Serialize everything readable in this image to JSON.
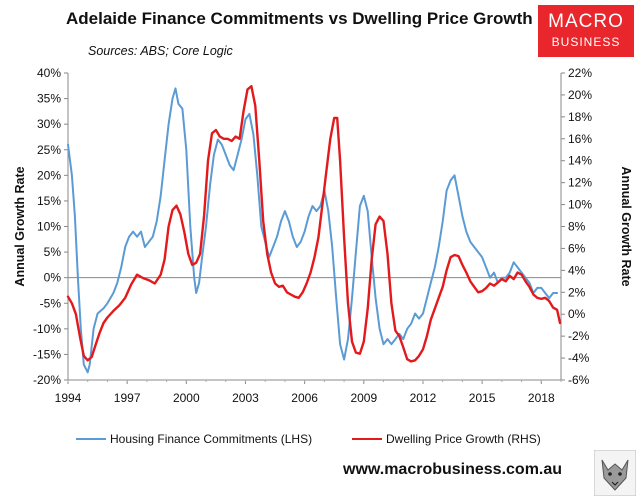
{
  "title": "Adelaide Finance Commitments vs Dwelling Price Growth",
  "subtitle": "Sources: ABS; Core Logic",
  "logo": {
    "line1": "MACRO",
    "line2": "BUSINESS"
  },
  "website": "www.macrobusiness.com.au",
  "colors": {
    "lhs": "#5b9bd5",
    "rhs": "#e31a1c",
    "logo_bg": "#e8262b"
  },
  "chart_data": {
    "type": "line",
    "title": "Adelaide Finance Commitments vs Dwelling Price Growth",
    "xlabel": "",
    "ylabel_left": "Annual Growth Rate",
    "ylabel_right": "Annual Growth Rate",
    "xlim": [
      1994,
      2019
    ],
    "ylim_left": [
      -20,
      40
    ],
    "ylim_right": [
      -6,
      22
    ],
    "x_ticks": [
      "1994",
      "1997",
      "2000",
      "2003",
      "2006",
      "2009",
      "2012",
      "2015",
      "2018"
    ],
    "y_ticks_left": [
      "40%",
      "35%",
      "30%",
      "25%",
      "20%",
      "15%",
      "10%",
      "5%",
      "0%",
      "-5%",
      "-10%",
      "-15%",
      "-20%"
    ],
    "y_ticks_right": [
      "22%",
      "20%",
      "18%",
      "16%",
      "14%",
      "12%",
      "10%",
      "8%",
      "6%",
      "4%",
      "2%",
      "0%",
      "-2%",
      "-4%",
      "-6%"
    ],
    "grid": false,
    "legend_position": "bottom",
    "series": [
      {
        "name": "Housing Finance Commitments (LHS)",
        "axis": "left",
        "color": "#5b9bd5",
        "points": [
          [
            1994.0,
            26
          ],
          [
            1994.2,
            20
          ],
          [
            1994.35,
            12
          ],
          [
            1994.5,
            0
          ],
          [
            1994.65,
            -10
          ],
          [
            1994.8,
            -17
          ],
          [
            1995.0,
            -18.5
          ],
          [
            1995.1,
            -17
          ],
          [
            1995.3,
            -10
          ],
          [
            1995.5,
            -7
          ],
          [
            1995.8,
            -6
          ],
          [
            1996.0,
            -5
          ],
          [
            1996.3,
            -3
          ],
          [
            1996.5,
            -1
          ],
          [
            1996.7,
            2
          ],
          [
            1996.9,
            6
          ],
          [
            1997.1,
            8
          ],
          [
            1997.3,
            9
          ],
          [
            1997.5,
            8
          ],
          [
            1997.7,
            9
          ],
          [
            1997.9,
            6
          ],
          [
            1998.1,
            7
          ],
          [
            1998.3,
            8
          ],
          [
            1998.5,
            11
          ],
          [
            1998.7,
            16
          ],
          [
            1998.9,
            23
          ],
          [
            1999.1,
            30
          ],
          [
            1999.3,
            35
          ],
          [
            1999.45,
            37
          ],
          [
            1999.6,
            34
          ],
          [
            1999.8,
            33
          ],
          [
            2000.0,
            25
          ],
          [
            2000.2,
            10
          ],
          [
            2000.4,
            0
          ],
          [
            2000.5,
            -3
          ],
          [
            2000.65,
            -1
          ],
          [
            2000.8,
            4
          ],
          [
            2001.0,
            10
          ],
          [
            2001.2,
            18
          ],
          [
            2001.4,
            24
          ],
          [
            2001.6,
            27
          ],
          [
            2001.8,
            26
          ],
          [
            2002.0,
            24
          ],
          [
            2002.2,
            22
          ],
          [
            2002.4,
            21
          ],
          [
            2002.6,
            24
          ],
          [
            2002.8,
            27
          ],
          [
            2003.0,
            31
          ],
          [
            2003.2,
            32
          ],
          [
            2003.4,
            28
          ],
          [
            2003.6,
            20
          ],
          [
            2003.8,
            10
          ],
          [
            2004.0,
            7
          ],
          [
            2004.2,
            4
          ],
          [
            2004.4,
            6
          ],
          [
            2004.6,
            8
          ],
          [
            2004.8,
            11
          ],
          [
            2005.0,
            13
          ],
          [
            2005.2,
            11
          ],
          [
            2005.4,
            8
          ],
          [
            2005.6,
            6
          ],
          [
            2005.8,
            7
          ],
          [
            2006.0,
            9
          ],
          [
            2006.2,
            12
          ],
          [
            2006.4,
            14
          ],
          [
            2006.6,
            13
          ],
          [
            2006.8,
            14
          ],
          [
            2007.0,
            17
          ],
          [
            2007.2,
            13
          ],
          [
            2007.4,
            6
          ],
          [
            2007.6,
            -4
          ],
          [
            2007.8,
            -13
          ],
          [
            2008.0,
            -16
          ],
          [
            2008.2,
            -12
          ],
          [
            2008.4,
            -4
          ],
          [
            2008.6,
            5
          ],
          [
            2008.8,
            14
          ],
          [
            2009.0,
            16
          ],
          [
            2009.2,
            13
          ],
          [
            2009.4,
            4
          ],
          [
            2009.6,
            -4
          ],
          [
            2009.8,
            -10
          ],
          [
            2010.0,
            -13
          ],
          [
            2010.2,
            -12
          ],
          [
            2010.4,
            -13
          ],
          [
            2010.6,
            -12
          ],
          [
            2010.8,
            -11
          ],
          [
            2011.0,
            -12
          ],
          [
            2011.2,
            -10
          ],
          [
            2011.4,
            -9
          ],
          [
            2011.6,
            -7
          ],
          [
            2011.8,
            -8
          ],
          [
            2012.0,
            -7
          ],
          [
            2012.2,
            -4
          ],
          [
            2012.4,
            -1
          ],
          [
            2012.6,
            2
          ],
          [
            2012.8,
            6
          ],
          [
            2013.0,
            11
          ],
          [
            2013.2,
            17
          ],
          [
            2013.4,
            19
          ],
          [
            2013.6,
            20
          ],
          [
            2013.8,
            16
          ],
          [
            2014.0,
            12
          ],
          [
            2014.2,
            9
          ],
          [
            2014.4,
            7
          ],
          [
            2014.6,
            6
          ],
          [
            2014.8,
            5
          ],
          [
            2015.0,
            4
          ],
          [
            2015.2,
            2
          ],
          [
            2015.4,
            0
          ],
          [
            2015.6,
            1
          ],
          [
            2015.8,
            -1
          ],
          [
            2016.0,
            0
          ],
          [
            2016.2,
            0
          ],
          [
            2016.4,
            1
          ],
          [
            2016.6,
            3
          ],
          [
            2016.8,
            2
          ],
          [
            2017.0,
            1
          ],
          [
            2017.2,
            0
          ],
          [
            2017.4,
            -1
          ],
          [
            2017.6,
            -3
          ],
          [
            2017.8,
            -2
          ],
          [
            2018.0,
            -2
          ],
          [
            2018.2,
            -3
          ],
          [
            2018.4,
            -4
          ],
          [
            2018.6,
            -3
          ],
          [
            2018.8,
            -3
          ]
        ]
      },
      {
        "name": "Dwelling Price Growth (RHS)",
        "axis": "right",
        "color": "#e31a1c",
        "points": [
          [
            1994.0,
            1.6
          ],
          [
            1994.2,
            1.0
          ],
          [
            1994.4,
            0.0
          ],
          [
            1994.6,
            -2.0
          ],
          [
            1994.8,
            -3.8
          ],
          [
            1995.0,
            -4.2
          ],
          [
            1995.2,
            -3.9
          ],
          [
            1995.4,
            -2.8
          ],
          [
            1995.6,
            -1.7
          ],
          [
            1995.8,
            -0.8
          ],
          [
            1996.0,
            -0.3
          ],
          [
            1996.3,
            0.3
          ],
          [
            1996.6,
            0.8
          ],
          [
            1996.9,
            1.5
          ],
          [
            1997.2,
            2.7
          ],
          [
            1997.5,
            3.6
          ],
          [
            1997.8,
            3.3
          ],
          [
            1998.1,
            3.1
          ],
          [
            1998.4,
            2.8
          ],
          [
            1998.7,
            3.6
          ],
          [
            1998.9,
            5.0
          ],
          [
            1999.1,
            8.0
          ],
          [
            1999.3,
            9.5
          ],
          [
            1999.5,
            9.9
          ],
          [
            1999.7,
            9.1
          ],
          [
            1999.9,
            7.5
          ],
          [
            2000.1,
            5.5
          ],
          [
            2000.3,
            4.5
          ],
          [
            2000.5,
            4.7
          ],
          [
            2000.7,
            5.5
          ],
          [
            2000.9,
            9.0
          ],
          [
            2001.1,
            14.0
          ],
          [
            2001.3,
            16.5
          ],
          [
            2001.5,
            16.8
          ],
          [
            2001.7,
            16.2
          ],
          [
            2001.9,
            16.0
          ],
          [
            2002.1,
            16.0
          ],
          [
            2002.3,
            15.8
          ],
          [
            2002.5,
            16.2
          ],
          [
            2002.7,
            16.0
          ],
          [
            2002.9,
            18.5
          ],
          [
            2003.1,
            20.5
          ],
          [
            2003.3,
            20.8
          ],
          [
            2003.5,
            19.0
          ],
          [
            2003.7,
            14.0
          ],
          [
            2003.9,
            8.5
          ],
          [
            2004.1,
            5.5
          ],
          [
            2004.3,
            3.8
          ],
          [
            2004.5,
            2.8
          ],
          [
            2004.7,
            2.5
          ],
          [
            2004.9,
            2.6
          ],
          [
            2005.1,
            2.0
          ],
          [
            2005.3,
            1.8
          ],
          [
            2005.5,
            1.6
          ],
          [
            2005.7,
            1.5
          ],
          [
            2005.9,
            2.0
          ],
          [
            2006.1,
            2.8
          ],
          [
            2006.3,
            3.8
          ],
          [
            2006.5,
            5.2
          ],
          [
            2006.7,
            7.0
          ],
          [
            2006.9,
            10.0
          ],
          [
            2007.1,
            13.0
          ],
          [
            2007.3,
            16.0
          ],
          [
            2007.5,
            17.9
          ],
          [
            2007.65,
            17.9
          ],
          [
            2007.8,
            14.0
          ],
          [
            2008.0,
            7.0
          ],
          [
            2008.2,
            1.0
          ],
          [
            2008.4,
            -2.5
          ],
          [
            2008.6,
            -3.5
          ],
          [
            2008.8,
            -3.6
          ],
          [
            2009.0,
            -2.5
          ],
          [
            2009.2,
            0.5
          ],
          [
            2009.4,
            5.0
          ],
          [
            2009.6,
            8.2
          ],
          [
            2009.8,
            8.9
          ],
          [
            2010.0,
            8.5
          ],
          [
            2010.2,
            5.5
          ],
          [
            2010.4,
            1.0
          ],
          [
            2010.6,
            -1.5
          ],
          [
            2010.8,
            -2.0
          ],
          [
            2011.0,
            -3.0
          ],
          [
            2011.2,
            -4.1
          ],
          [
            2011.4,
            -4.3
          ],
          [
            2011.6,
            -4.2
          ],
          [
            2011.8,
            -3.8
          ],
          [
            2012.0,
            -3.2
          ],
          [
            2012.2,
            -2.0
          ],
          [
            2012.4,
            -0.5
          ],
          [
            2012.6,
            0.5
          ],
          [
            2012.8,
            1.5
          ],
          [
            2013.0,
            2.5
          ],
          [
            2013.2,
            4.0
          ],
          [
            2013.4,
            5.2
          ],
          [
            2013.6,
            5.4
          ],
          [
            2013.8,
            5.3
          ],
          [
            2014.0,
            4.5
          ],
          [
            2014.2,
            3.8
          ],
          [
            2014.4,
            3.0
          ],
          [
            2014.6,
            2.5
          ],
          [
            2014.8,
            2.0
          ],
          [
            2015.0,
            2.1
          ],
          [
            2015.2,
            2.4
          ],
          [
            2015.4,
            2.8
          ],
          [
            2015.6,
            2.6
          ],
          [
            2015.8,
            2.9
          ],
          [
            2016.0,
            3.2
          ],
          [
            2016.2,
            3.0
          ],
          [
            2016.4,
            3.5
          ],
          [
            2016.6,
            3.2
          ],
          [
            2016.8,
            3.8
          ],
          [
            2017.0,
            3.6
          ],
          [
            2017.2,
            3.0
          ],
          [
            2017.4,
            2.5
          ],
          [
            2017.6,
            1.8
          ],
          [
            2017.8,
            1.5
          ],
          [
            2018.0,
            1.4
          ],
          [
            2018.2,
            1.5
          ],
          [
            2018.4,
            1.2
          ],
          [
            2018.6,
            0.6
          ],
          [
            2018.8,
            0.4
          ],
          [
            2018.95,
            -0.8
          ]
        ]
      }
    ]
  }
}
